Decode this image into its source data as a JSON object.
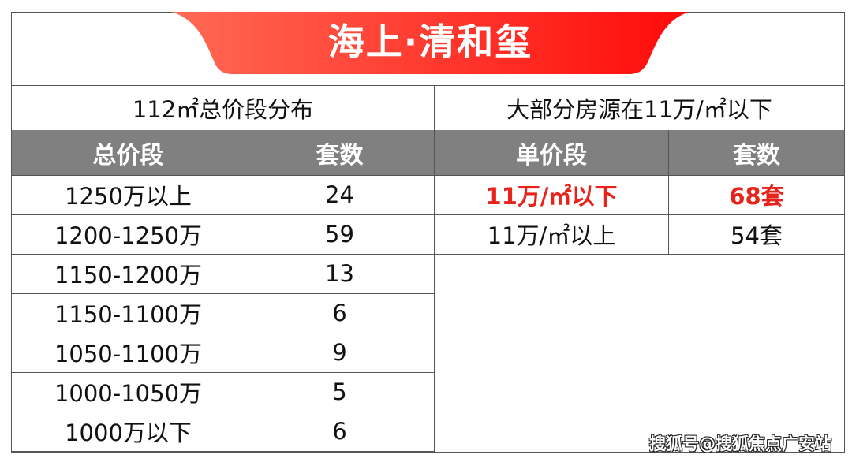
{
  "title": "海上·清和玺",
  "colors": {
    "banner_start": "#ff6a55",
    "banner_end": "#ff0a0a",
    "header_bg": "#808080",
    "highlight": "#e8231b"
  },
  "left_table": {
    "caption": "112㎡总价段分布",
    "headers": [
      "总价段",
      "套数"
    ],
    "rows": [
      [
        "1250万以上",
        "24"
      ],
      [
        "1200-1250万",
        "59"
      ],
      [
        "1150-1200万",
        "13"
      ],
      [
        "1150-1100万",
        "6"
      ],
      [
        "1050-1100万",
        "9"
      ],
      [
        "1000-1050万",
        "5"
      ],
      [
        "1000万以下",
        "6"
      ]
    ]
  },
  "right_table": {
    "caption": "大部分房源在11万/㎡以下",
    "headers": [
      "单价段",
      "套数"
    ],
    "rows": [
      [
        "11万/㎡以下",
        "68套"
      ],
      [
        "11万/㎡以上",
        "54套"
      ]
    ]
  },
  "watermark": "搜狐号@搜狐焦点广安站"
}
